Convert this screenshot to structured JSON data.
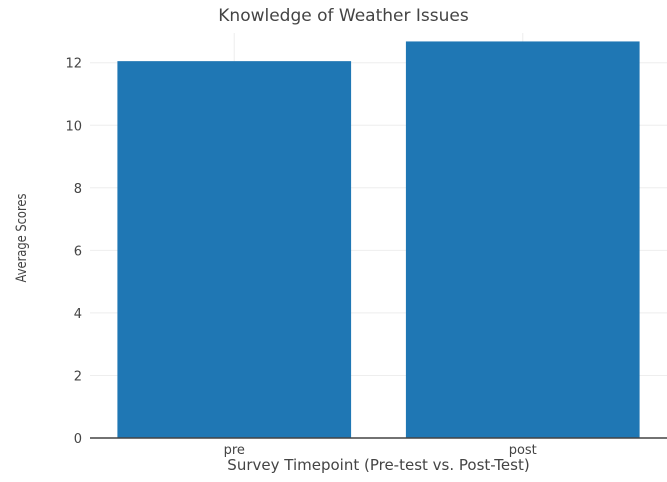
{
  "chart_data": {
    "type": "bar",
    "title": "Knowledge of Weather Issues",
    "xlabel": "Survey Timepoint (Pre-test vs. Post-Test)",
    "ylabel": "Average Scores",
    "categories": [
      "pre",
      "post"
    ],
    "values": [
      12.05,
      12.68
    ],
    "ylim": [
      0,
      12.95
    ],
    "yticks": [
      0,
      2,
      4,
      6,
      8,
      10,
      12
    ],
    "grid": true,
    "colors": {
      "bar": "#1f77b4",
      "grid": "#eeeeee",
      "axis": "#444444"
    }
  }
}
